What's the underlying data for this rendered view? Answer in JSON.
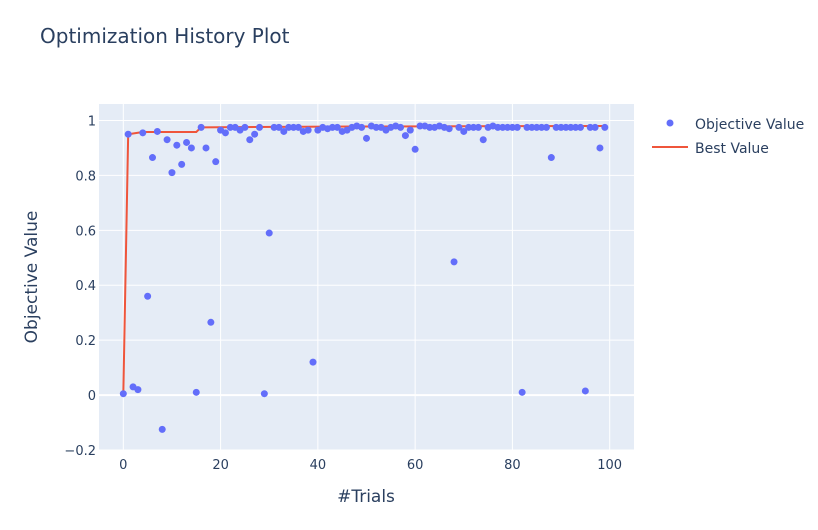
{
  "chart_data": {
    "type": "scatter",
    "title": "Optimization History Plot",
    "xlabel": "#Trials",
    "ylabel": "Objective Value",
    "xlim": [
      -5,
      105
    ],
    "ylim": [
      -0.2,
      1.06
    ],
    "xticks": [
      0,
      20,
      40,
      60,
      80,
      100
    ],
    "yticks": [
      -0.2,
      0,
      0.2,
      0.4,
      0.6,
      0.8,
      1
    ],
    "ytick_labels": [
      "−0.2",
      "0",
      "0.2",
      "0.4",
      "0.6",
      "0.8",
      "1"
    ],
    "grid": true,
    "legend_position": "top-right",
    "colors": {
      "plot_bg": "#e5ecf6",
      "grid": "#ffffff",
      "objective": "#636efa",
      "best": "#ef553b"
    },
    "series": [
      {
        "name": "Objective Value",
        "mode": "markers",
        "x": [
          0,
          1,
          2,
          3,
          4,
          5,
          6,
          7,
          8,
          9,
          10,
          11,
          12,
          13,
          14,
          15,
          16,
          17,
          18,
          19,
          20,
          21,
          22,
          23,
          24,
          25,
          26,
          27,
          28,
          29,
          30,
          31,
          32,
          33,
          34,
          35,
          36,
          37,
          38,
          39,
          40,
          41,
          42,
          43,
          44,
          45,
          46,
          47,
          48,
          49,
          50,
          51,
          52,
          53,
          54,
          55,
          56,
          57,
          58,
          59,
          60,
          61,
          62,
          63,
          64,
          65,
          66,
          67,
          68,
          69,
          70,
          71,
          72,
          73,
          74,
          75,
          76,
          77,
          78,
          79,
          80,
          81,
          82,
          83,
          84,
          85,
          86,
          87,
          88,
          89,
          90,
          91,
          92,
          93,
          94,
          95,
          96,
          97,
          98,
          99
        ],
        "y": [
          0.005,
          0.95,
          0.03,
          0.02,
          0.955,
          0.36,
          0.865,
          0.96,
          -0.125,
          0.93,
          0.81,
          0.91,
          0.84,
          0.92,
          0.9,
          0.01,
          0.975,
          0.9,
          0.265,
          0.85,
          0.965,
          0.955,
          0.975,
          0.975,
          0.965,
          0.975,
          0.93,
          0.95,
          0.975,
          0.005,
          0.59,
          0.975,
          0.975,
          0.96,
          0.975,
          0.975,
          0.975,
          0.96,
          0.965,
          0.12,
          0.965,
          0.975,
          0.97,
          0.975,
          0.975,
          0.96,
          0.965,
          0.975,
          0.98,
          0.975,
          0.935,
          0.98,
          0.975,
          0.975,
          0.965,
          0.975,
          0.98,
          0.975,
          0.945,
          0.965,
          0.895,
          0.98,
          0.98,
          0.975,
          0.975,
          0.98,
          0.975,
          0.97,
          0.485,
          0.975,
          0.96,
          0.975,
          0.975,
          0.975,
          0.93,
          0.975,
          0.98,
          0.975,
          0.975,
          0.975,
          0.975,
          0.975,
          0.01,
          0.975,
          0.975,
          0.975,
          0.975,
          0.975,
          0.865,
          0.975,
          0.975,
          0.975,
          0.975,
          0.975,
          0.975,
          0.015,
          0.975,
          0.975,
          0.9,
          0.975
        ]
      },
      {
        "name": "Best Value",
        "mode": "lines",
        "x": [
          0,
          1,
          4,
          15,
          16,
          47,
          99
        ],
        "y": [
          0.005,
          0.95,
          0.958,
          0.958,
          0.975,
          0.978,
          0.98
        ]
      }
    ]
  }
}
